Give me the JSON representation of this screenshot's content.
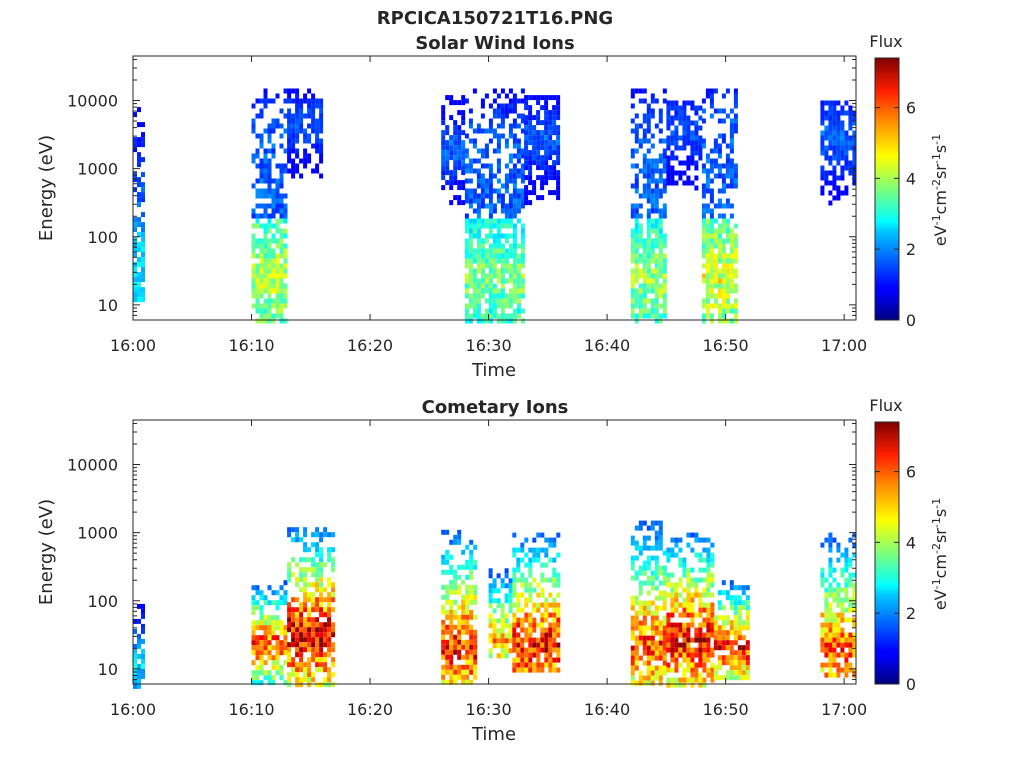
{
  "figure": {
    "title": "RPCICA150721T16.PNG"
  },
  "chart_data": [
    {
      "type": "heatmap",
      "title": "Solar Wind Ions",
      "xlabel": "Time",
      "ylabel": "Energy (eV)",
      "x_ticks": [
        "16:00",
        "16:10",
        "16:20",
        "16:30",
        "16:40",
        "16:50",
        "17:00"
      ],
      "x_range": [
        "16:00",
        "17:01"
      ],
      "y_ticks": [
        "10",
        "100",
        "1000",
        "10000"
      ],
      "y_scale": "log",
      "y_range": [
        6,
        45000
      ],
      "colorbar": {
        "label": "Flux",
        "units": "eV-1cm-2sr-1s-1",
        "ticks": [
          "0",
          "2",
          "4",
          "6"
        ],
        "range": [
          0,
          7.4
        ],
        "colormap": "jet"
      },
      "grid": false,
      "data_blocks": [
        {
          "t_start": "16:00",
          "t_end": "16:01",
          "e_min": 12,
          "e_max": 8000,
          "peak_flux": 3.0,
          "peak_energy": 20
        },
        {
          "t_start": "16:10",
          "t_end": "16:13",
          "e_min": 6,
          "e_max": 15000,
          "peak_flux": 4.5,
          "peak_energy": 25
        },
        {
          "t_start": "16:13",
          "t_end": "16:16",
          "e_min": 800,
          "e_max": 15000,
          "peak_flux": 1.8,
          "peak_energy": 5000
        },
        {
          "t_start": "16:26",
          "t_end": "16:28",
          "e_min": 300,
          "e_max": 12000,
          "peak_flux": 2.0,
          "peak_energy": 2000
        },
        {
          "t_start": "16:28",
          "t_end": "16:33",
          "e_min": 6,
          "e_max": 15000,
          "peak_flux": 4.0,
          "peak_energy": 25
        },
        {
          "t_start": "16:33",
          "t_end": "16:36",
          "e_min": 300,
          "e_max": 12000,
          "peak_flux": 1.8,
          "peak_energy": 3000
        },
        {
          "t_start": "16:42",
          "t_end": "16:45",
          "e_min": 6,
          "e_max": 15000,
          "peak_flux": 4.2,
          "peak_energy": 25
        },
        {
          "t_start": "16:45",
          "t_end": "16:48",
          "e_min": 500,
          "e_max": 10000,
          "peak_flux": 1.8,
          "peak_energy": 4000
        },
        {
          "t_start": "16:48",
          "t_end": "16:51",
          "e_min": 6,
          "e_max": 15000,
          "peak_flux": 4.8,
          "peak_energy": 25
        },
        {
          "t_start": "16:58",
          "t_end": "17:01",
          "e_min": 300,
          "e_max": 10000,
          "peak_flux": 2.0,
          "peak_energy": 3000
        }
      ]
    },
    {
      "type": "heatmap",
      "title": "Cometary Ions",
      "xlabel": "Time",
      "ylabel": "Energy (eV)",
      "x_ticks": [
        "16:00",
        "16:10",
        "16:20",
        "16:30",
        "16:40",
        "16:50",
        "17:00"
      ],
      "x_range": [
        "16:00",
        "17:01"
      ],
      "y_ticks": [
        "10",
        "100",
        "1000",
        "10000"
      ],
      "y_scale": "log",
      "y_range": [
        6,
        45000
      ],
      "colorbar": {
        "label": "Flux",
        "units": "eV-1cm-2sr-1s-1",
        "ticks": [
          "0",
          "2",
          "4",
          "6"
        ],
        "range": [
          0,
          7.4
        ],
        "colormap": "jet"
      },
      "grid": false,
      "data_blocks": [
        {
          "t_start": "16:00",
          "t_end": "16:01",
          "e_min": 6,
          "e_max": 90,
          "peak_flux": 2.8,
          "peak_energy": 12
        },
        {
          "t_start": "16:10",
          "t_end": "16:13",
          "e_min": 6,
          "e_max": 200,
          "peak_flux": 6.5,
          "peak_energy": 25
        },
        {
          "t_start": "16:13",
          "t_end": "16:17",
          "e_min": 6,
          "e_max": 1200,
          "peak_flux": 7.4,
          "peak_energy": 35
        },
        {
          "t_start": "16:26",
          "t_end": "16:29",
          "e_min": 6,
          "e_max": 1100,
          "peak_flux": 6.8,
          "peak_energy": 22
        },
        {
          "t_start": "16:30",
          "t_end": "16:32",
          "e_min": 15,
          "e_max": 300,
          "peak_flux": 5.8,
          "peak_energy": 30
        },
        {
          "t_start": "16:32",
          "t_end": "16:36",
          "e_min": 10,
          "e_max": 1000,
          "peak_flux": 7.0,
          "peak_energy": 25
        },
        {
          "t_start": "16:42",
          "t_end": "16:45",
          "e_min": 6,
          "e_max": 1500,
          "peak_flux": 6.5,
          "peak_energy": 25
        },
        {
          "t_start": "16:45",
          "t_end": "16:49",
          "e_min": 6,
          "e_max": 1000,
          "peak_flux": 7.2,
          "peak_energy": 30
        },
        {
          "t_start": "16:49",
          "t_end": "16:52",
          "e_min": 8,
          "e_max": 200,
          "peak_flux": 7.0,
          "peak_energy": 22
        },
        {
          "t_start": "16:58",
          "t_end": "17:01",
          "e_min": 8,
          "e_max": 1000,
          "peak_flux": 6.5,
          "peak_energy": 20
        }
      ]
    }
  ]
}
